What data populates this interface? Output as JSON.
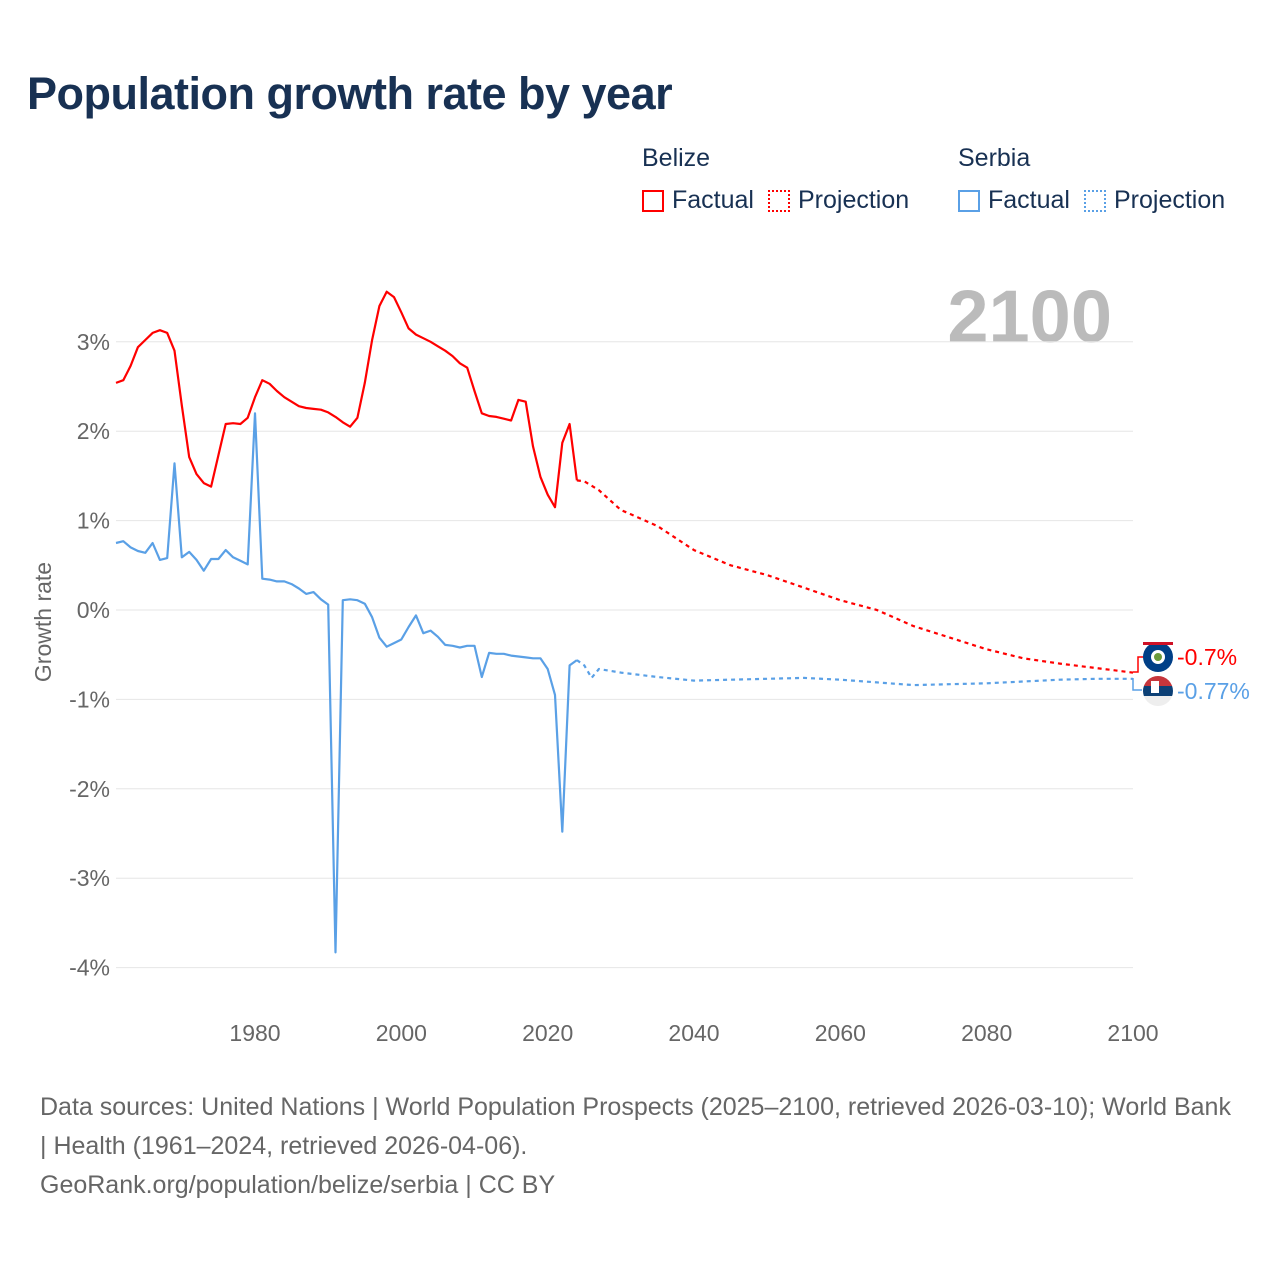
{
  "title": "Population growth rate by year",
  "legend": {
    "groups": [
      {
        "name": "Belize",
        "color": "#ff0000",
        "factual": "Factual",
        "projection": "Projection"
      },
      {
        "name": "Serbia",
        "color": "#5aa0e6",
        "factual": "Factual",
        "projection": "Projection"
      }
    ]
  },
  "year_display": "2100",
  "end_labels": {
    "belize": "-0.7%",
    "serbia": "-0.77%"
  },
  "footer": {
    "sources": "Data sources: United Nations | World Population Prospects (2025–2100, retrieved 2026-03-10); World Bank | Health (1961–2024, retrieved 2026-04-06).",
    "credit": "GeoRank.org/population/belize/serbia | CC BY"
  },
  "chart_data": {
    "type": "line",
    "title": "Population growth rate by year",
    "xlabel": "",
    "ylabel": "Growth rate",
    "xlim": [
      1961,
      2100
    ],
    "ylim": [
      -4.4,
      3.8
    ],
    "x_ticks": [
      1980,
      2000,
      2020,
      2040,
      2060,
      2080,
      2100
    ],
    "x_tick_labels": [
      "1980",
      "2000",
      "2020",
      "2040",
      "2060",
      "2080",
      "2100"
    ],
    "y_ticks": [
      3,
      2,
      1,
      0,
      -1,
      -2,
      -3,
      -4
    ],
    "y_tick_labels": [
      "3%",
      "2%",
      "1%",
      "0%",
      "-1%",
      "-2%",
      "-3%",
      "-4%"
    ],
    "grid": true,
    "legend_position": "top-right",
    "series": [
      {
        "name": "Belize Factual",
        "color": "#ff0000",
        "dash": false,
        "x": [
          1961,
          1962,
          1963,
          1964,
          1965,
          1966,
          1967,
          1968,
          1969,
          1970,
          1971,
          1972,
          1973,
          1974,
          1975,
          1976,
          1977,
          1978,
          1979,
          1980,
          1981,
          1982,
          1983,
          1984,
          1985,
          1986,
          1987,
          1988,
          1989,
          1990,
          1991,
          1992,
          1993,
          1994,
          1995,
          1996,
          1997,
          1998,
          1999,
          2000,
          2001,
          2002,
          2003,
          2004,
          2005,
          2006,
          2007,
          2008,
          2009,
          2010,
          2011,
          2012,
          2013,
          2014,
          2015,
          2016,
          2017,
          2018,
          2019,
          2020,
          2021,
          2022,
          2023,
          2024
        ],
        "y": [
          2.54,
          2.57,
          2.73,
          2.94,
          3.02,
          3.1,
          3.13,
          3.1,
          2.9,
          2.29,
          1.71,
          1.52,
          1.42,
          1.38,
          1.73,
          2.08,
          2.09,
          2.08,
          2.15,
          2.38,
          2.57,
          2.53,
          2.45,
          2.38,
          2.33,
          2.28,
          2.26,
          2.25,
          2.24,
          2.21,
          2.16,
          2.1,
          2.05,
          2.15,
          2.54,
          3.02,
          3.4,
          3.56,
          3.5,
          3.33,
          3.15,
          3.08,
          3.04,
          3.0,
          2.95,
          2.9,
          2.84,
          2.76,
          2.71,
          2.45,
          2.2,
          2.17,
          2.16,
          2.14,
          2.12,
          2.35,
          2.33,
          1.83,
          1.49,
          1.29,
          1.15,
          1.87,
          2.08,
          1.45
        ]
      },
      {
        "name": "Belize Projection",
        "color": "#ff0000",
        "dash": true,
        "x": [
          2024,
          2025,
          2027,
          2030,
          2035,
          2040,
          2045,
          2050,
          2055,
          2060,
          2065,
          2070,
          2075,
          2080,
          2085,
          2090,
          2095,
          2100
        ],
        "y": [
          1.45,
          1.44,
          1.34,
          1.12,
          0.94,
          0.67,
          0.5,
          0.39,
          0.25,
          0.11,
          0.0,
          -0.18,
          -0.31,
          -0.44,
          -0.54,
          -0.6,
          -0.65,
          -0.7
        ]
      },
      {
        "name": "Serbia Factual",
        "color": "#5aa0e6",
        "dash": false,
        "x": [
          1961,
          1962,
          1963,
          1964,
          1965,
          1966,
          1967,
          1968,
          1969,
          1970,
          1971,
          1972,
          1973,
          1974,
          1975,
          1976,
          1977,
          1978,
          1979,
          1980,
          1981,
          1982,
          1983,
          1984,
          1985,
          1986,
          1987,
          1988,
          1989,
          1990,
          1991,
          1992,
          1993,
          1994,
          1995,
          1996,
          1997,
          1998,
          1999,
          2000,
          2001,
          2002,
          2003,
          2004,
          2005,
          2006,
          2007,
          2008,
          2009,
          2010,
          2011,
          2012,
          2013,
          2014,
          2015,
          2016,
          2017,
          2018,
          2019,
          2020,
          2021,
          2022,
          2023,
          2024
        ],
        "y": [
          0.75,
          0.77,
          0.7,
          0.66,
          0.64,
          0.75,
          0.56,
          0.58,
          1.64,
          0.59,
          0.65,
          0.56,
          0.44,
          0.57,
          0.57,
          0.67,
          0.59,
          0.55,
          0.51,
          2.2,
          0.35,
          0.34,
          0.32,
          0.32,
          0.29,
          0.24,
          0.18,
          0.2,
          0.12,
          0.06,
          -3.83,
          0.11,
          0.12,
          0.11,
          0.07,
          -0.08,
          -0.31,
          -0.41,
          -0.37,
          -0.33,
          -0.19,
          -0.06,
          -0.26,
          -0.23,
          -0.3,
          -0.39,
          -0.4,
          -0.42,
          -0.4,
          -0.4,
          -0.75,
          -0.48,
          -0.49,
          -0.49,
          -0.51,
          -0.52,
          -0.53,
          -0.54,
          -0.54,
          -0.66,
          -0.95,
          -2.48,
          -0.62,
          -0.56
        ]
      },
      {
        "name": "Serbia Projection",
        "color": "#5aa0e6",
        "dash": true,
        "x": [
          2024,
          2025,
          2026,
          2027,
          2030,
          2035,
          2040,
          2045,
          2050,
          2055,
          2060,
          2065,
          2070,
          2075,
          2080,
          2085,
          2090,
          2095,
          2100
        ],
        "y": [
          -0.56,
          -0.62,
          -0.76,
          -0.66,
          -0.7,
          -0.75,
          -0.79,
          -0.78,
          -0.77,
          -0.76,
          -0.78,
          -0.81,
          -0.84,
          -0.83,
          -0.82,
          -0.8,
          -0.78,
          -0.77,
          -0.77
        ]
      }
    ]
  }
}
